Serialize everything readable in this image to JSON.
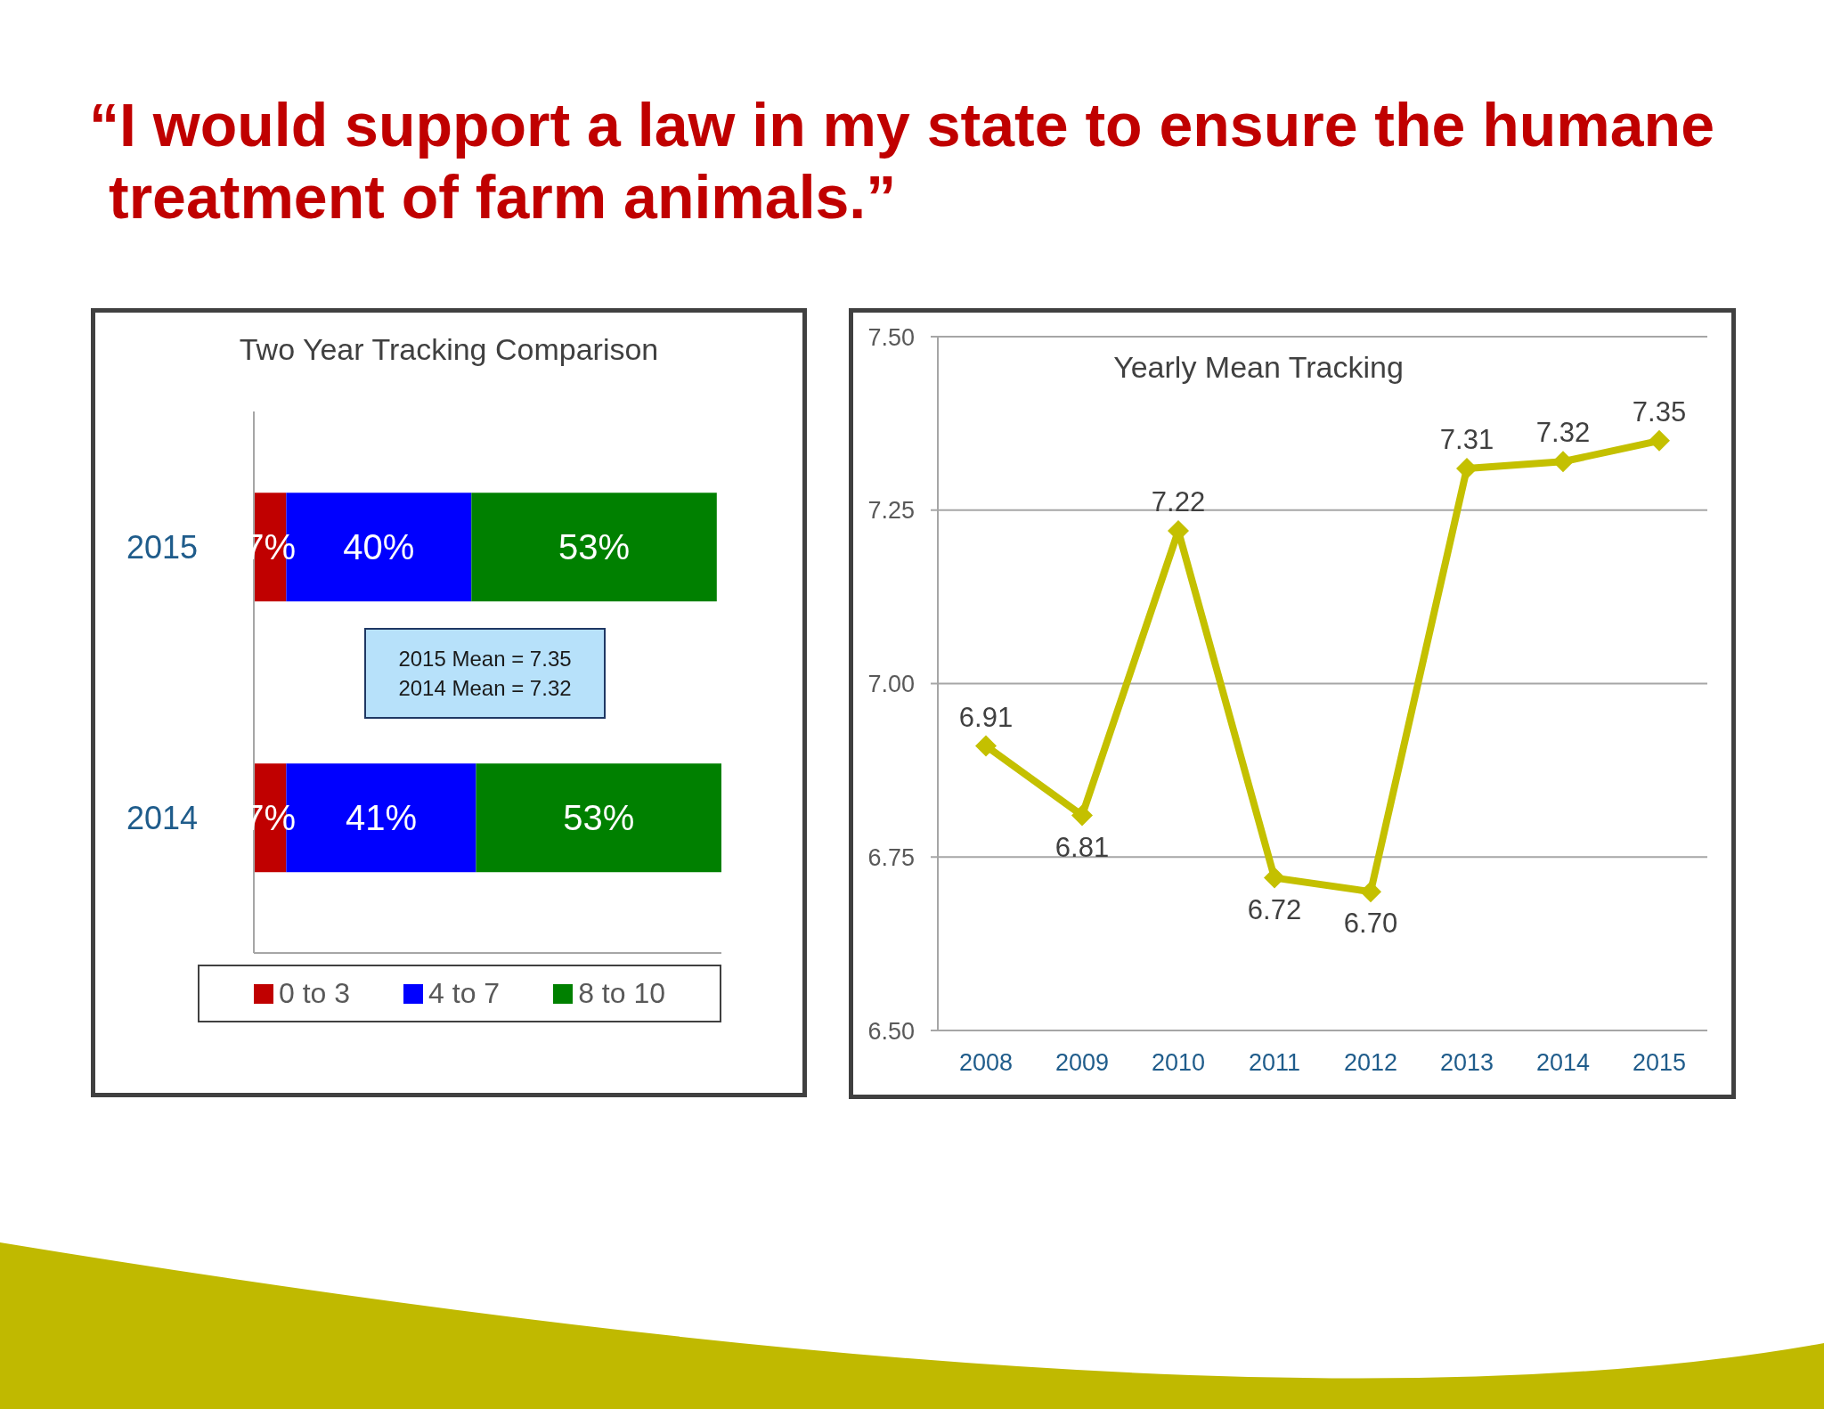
{
  "chart_data": [
    {
      "type": "bar",
      "orientation": "horizontal",
      "stacked": true,
      "title": "“I would support a law in my state to ensure the humane treatment of farm animals.”",
      "subtitle": "Two Year Tracking Comparison",
      "categories": [
        "2015",
        "2014"
      ],
      "series": [
        {
          "name": "0 to 3",
          "color": "#c00000",
          "values": [
            7,
            7
          ],
          "value_labels": [
            "7%",
            "7%"
          ]
        },
        {
          "name": "4 to 7",
          "color": "#0000ff",
          "values": [
            40,
            41
          ],
          "value_labels": [
            "40%",
            "41%"
          ]
        },
        {
          "name": "8 to 10",
          "color": "#008000",
          "values": [
            53,
            53
          ],
          "value_labels": [
            "53%",
            "53%"
          ]
        }
      ],
      "xlim": [
        0,
        101
      ],
      "tick_labels": "y",
      "legend": "bottom",
      "annotations": [
        "2015 Mean = 7.35",
        "2014 Mean = 7.32"
      ]
    },
    {
      "type": "line",
      "title": "Yearly Mean Tracking",
      "categories": [
        "2008",
        "2009",
        "2010",
        "2011",
        "2012",
        "2013",
        "2014",
        "2015"
      ],
      "series": [
        {
          "color": "#c4c000",
          "values": [
            6.91,
            6.81,
            7.22,
            6.72,
            6.7,
            7.31,
            7.32,
            7.35
          ],
          "value_labels": [
            "6.91",
            "6.81",
            "7.22",
            "6.72",
            "6.70",
            "7.31",
            "7.32",
            "7.35"
          ]
        }
      ],
      "ylim": [
        6.5,
        7.5
      ],
      "yticks": [
        {
          "value": 6.5,
          "label": "6.50"
        },
        {
          "value": 6.75,
          "label": "6.75"
        },
        {
          "value": 7.0,
          "label": "7.00"
        },
        {
          "value": 7.25,
          "label": "7.25"
        },
        {
          "value": 7.5,
          "label": "7.50"
        }
      ],
      "grid": "y",
      "marker": "diamond",
      "line_style": "solid"
    }
  ]
}
